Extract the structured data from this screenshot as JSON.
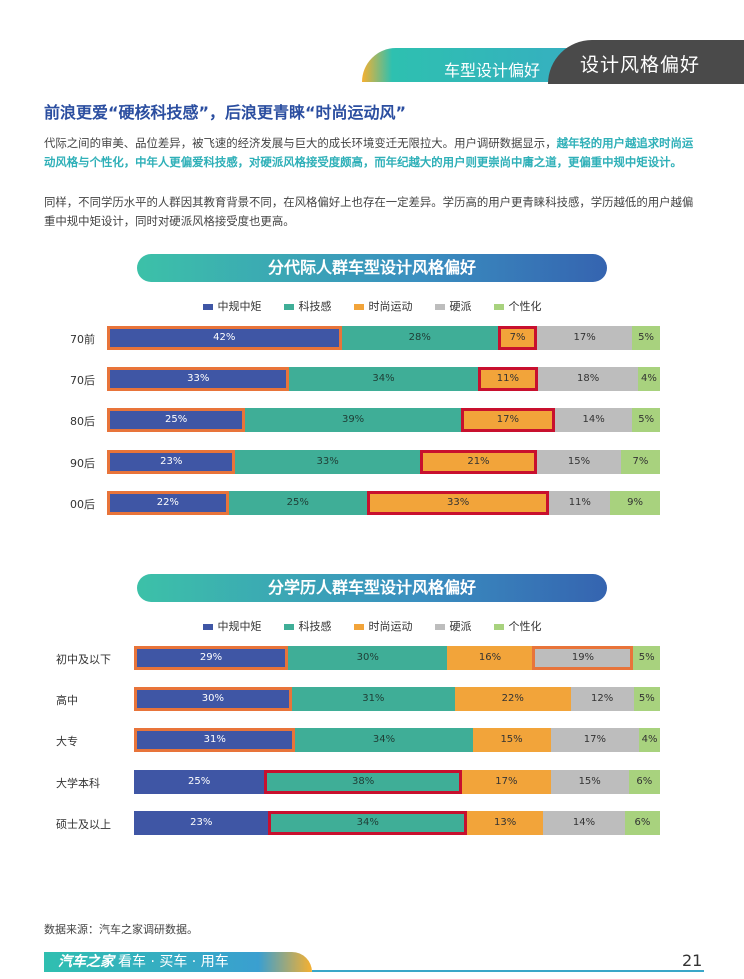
{
  "header": {
    "section": "车型设计偏好",
    "title": "设计风格偏好"
  },
  "heading": "前浪更爱“硬核科技感”，后浪更青睐“时尚运动风”",
  "para1": {
    "normal": "代际之间的审美、品位差异，被飞速的经济发展与巨大的成长环境变迁无限拉大。用户调研数据显示，",
    "highlight": "越年轻的用户越追求时尚运动风格与个性化，中年人更偏爱科技感，对硬派风格接受度颇高，而年纪越大的用户则更崇尚中庸之道，更偏重中规中矩设计。"
  },
  "para2": "同样，不同学历水平的人群因其教育背景不同，在风格偏好上也存在一定差异。学历高的用户更青睐科技感，学历越低的用户越偏重中规中矩设计，同时对硬派风格接受度也更高。",
  "legend": [
    "中规中矩",
    "科技感",
    "时尚运动",
    "硬派",
    "个性化"
  ],
  "colors": {
    "zhonggui": "#3f56a5",
    "keji": "#3fae97",
    "shishang": "#f2a43a",
    "yingpai": "#bdbdbd",
    "gexing": "#a8d27e"
  },
  "chart_data": [
    {
      "type": "bar",
      "stacked": true,
      "orientation": "horizontal",
      "title": "分代际人群车型设计风格偏好",
      "categories": [
        "70前",
        "70后",
        "80后",
        "90后",
        "00后"
      ],
      "series": [
        {
          "name": "中规中矩",
          "values": [
            42,
            33,
            25,
            23,
            22
          ]
        },
        {
          "name": "科技感",
          "values": [
            28,
            34,
            39,
            33,
            25
          ]
        },
        {
          "name": "时尚运动",
          "values": [
            7,
            11,
            17,
            21,
            33
          ]
        },
        {
          "name": "硬派",
          "values": [
            17,
            18,
            14,
            15,
            11
          ]
        },
        {
          "name": "个性化",
          "values": [
            5,
            4,
            5,
            7,
            9
          ]
        }
      ],
      "highlights": [
        {
          "category": "70前",
          "series": "中规中矩",
          "style": "orange"
        },
        {
          "category": "70前",
          "series": "时尚运动",
          "style": "red"
        },
        {
          "category": "70后",
          "series": "中规中矩",
          "style": "orange"
        },
        {
          "category": "70后",
          "series": "时尚运动",
          "style": "red"
        },
        {
          "category": "80后",
          "series": "中规中矩",
          "style": "orange"
        },
        {
          "category": "80后",
          "series": "时尚运动",
          "style": "red"
        },
        {
          "category": "90后",
          "series": "中规中矩",
          "style": "orange"
        },
        {
          "category": "90后",
          "series": "时尚运动",
          "style": "red"
        },
        {
          "category": "00后",
          "series": "中规中矩",
          "style": "orange"
        },
        {
          "category": "00后",
          "series": "时尚运动",
          "style": "red"
        }
      ],
      "legend_position": "top"
    },
    {
      "type": "bar",
      "stacked": true,
      "orientation": "horizontal",
      "title": "分学历人群车型设计风格偏好",
      "categories": [
        "初中及以下",
        "高中",
        "大专",
        "大学本科",
        "硕士及以上"
      ],
      "series": [
        {
          "name": "中规中矩",
          "values": [
            29,
            30,
            31,
            25,
            23
          ]
        },
        {
          "name": "科技感",
          "values": [
            30,
            31,
            34,
            38,
            34
          ]
        },
        {
          "name": "时尚运动",
          "values": [
            16,
            22,
            15,
            17,
            13
          ]
        },
        {
          "name": "硬派",
          "values": [
            19,
            12,
            17,
            15,
            14
          ]
        },
        {
          "name": "个性化",
          "values": [
            5,
            5,
            4,
            6,
            6
          ]
        }
      ],
      "highlights": [
        {
          "category": "初中及以下",
          "series": "中规中矩",
          "style": "orange"
        },
        {
          "category": "初中及以下",
          "series": "硬派",
          "style": "orange"
        },
        {
          "category": "高中",
          "series": "中规中矩",
          "style": "orange"
        },
        {
          "category": "大专",
          "series": "中规中矩",
          "style": "orange"
        },
        {
          "category": "大学本科",
          "series": "科技感",
          "style": "red"
        },
        {
          "category": "硕士及以上",
          "series": "科技感",
          "style": "red"
        }
      ],
      "legend_position": "top"
    }
  ],
  "source": "数据来源：汽车之家调研数据。",
  "footer": {
    "brand": "汽车之家",
    "slogan": "看车 · 买车 · 用车"
  },
  "page_number": "21"
}
